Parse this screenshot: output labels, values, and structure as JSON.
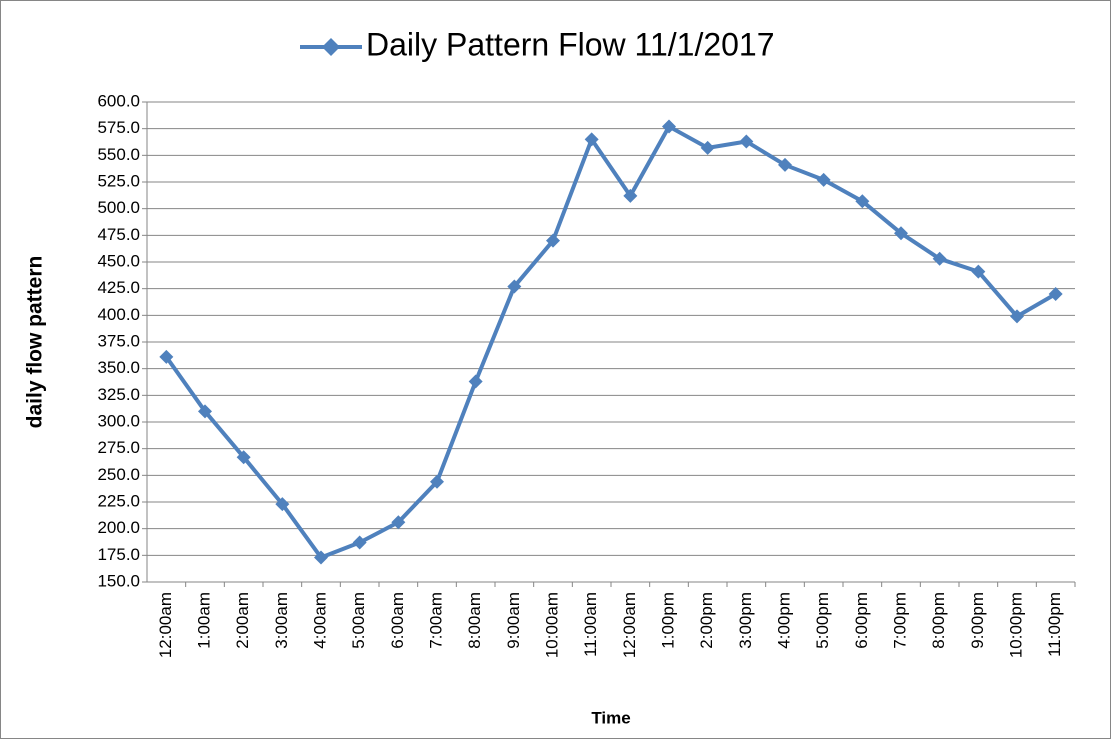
{
  "chart_data": {
    "type": "line",
    "x_label": "Time",
    "y_label": "daily flow pattern",
    "categories": [
      "12:00am",
      "1:00am",
      "2:00am",
      "3:00am",
      "4:00am",
      "5:00am",
      "6:00am",
      "7:00am",
      "8:00am",
      "9:00am",
      "10:00am",
      "11:00am",
      "12:00am",
      "1:00pm",
      "2:00pm",
      "3:00pm",
      "4:00pm",
      "5:00pm",
      "6:00pm",
      "7:00pm",
      "8:00pm",
      "9:00pm",
      "10:00pm",
      "11:00pm"
    ],
    "series": [
      {
        "name": "Daily Pattern Flow 11/1/2017",
        "color": "#4f81bd",
        "values": [
          361,
          310,
          267,
          223,
          173,
          187,
          206,
          244,
          338,
          427,
          470,
          565,
          512,
          577,
          557,
          563,
          541,
          527,
          507,
          477,
          453,
          441,
          399,
          420
        ]
      }
    ],
    "ylim": [
      150,
      600
    ],
    "yticks": [
      {
        "value": 150,
        "label": "150.0"
      },
      {
        "value": 175,
        "label": "175.0"
      },
      {
        "value": 200,
        "label": "200.0"
      },
      {
        "value": 225,
        "label": "225.0"
      },
      {
        "value": 250,
        "label": "250.0"
      },
      {
        "value": 275,
        "label": "275.0"
      },
      {
        "value": 300,
        "label": "300.0"
      },
      {
        "value": 325,
        "label": "325.0"
      },
      {
        "value": 350,
        "label": "350.0"
      },
      {
        "value": 375,
        "label": "375.0"
      },
      {
        "value": 400,
        "label": "400.0"
      },
      {
        "value": 425,
        "label": "425.0"
      },
      {
        "value": 450,
        "label": "450.0"
      },
      {
        "value": 475,
        "label": "475.0"
      },
      {
        "value": 500,
        "label": "500.0"
      },
      {
        "value": 525,
        "label": "525.0"
      },
      {
        "value": 550,
        "label": "550.0"
      },
      {
        "value": 575,
        "label": "575.0"
      },
      {
        "value": 600,
        "label": "600.0"
      }
    ],
    "grid": true,
    "legend": "top"
  }
}
